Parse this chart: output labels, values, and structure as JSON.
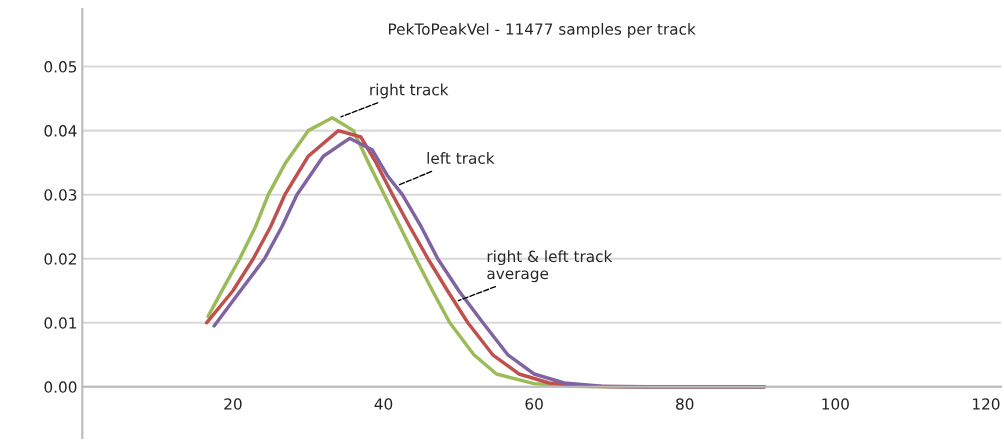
{
  "chart_data": {
    "type": "line",
    "title": "PekToPeakVel - 11477 samples per track",
    "xlim": [
      0,
      122
    ],
    "ylim": [
      -0.008,
      0.059
    ],
    "xticks": [
      20,
      40,
      60,
      80,
      100,
      120
    ],
    "yticks": [
      {
        "value": 0,
        "label": "0.00"
      },
      {
        "value": 0.01,
        "label": "0.01"
      },
      {
        "value": 0.02,
        "label": "0.02"
      },
      {
        "value": 0.03,
        "label": "0.03"
      },
      {
        "value": 0.04,
        "label": "0.04"
      },
      {
        "value": 0.05,
        "label": "0.05"
      }
    ],
    "grid": "y",
    "legend": false,
    "marker": "none",
    "line_style": "solid",
    "series": [
      {
        "color": "#9bbb59",
        "x": [
          16.7,
          19,
          20.9,
          23,
          24.7,
          27,
          30,
          33.2,
          36,
          38,
          40.1,
          42.2,
          44.3,
          46.5,
          48.8,
          52,
          55,
          60,
          65,
          70,
          80,
          90.6
        ],
        "values": [
          0.011,
          0.016,
          0.02,
          0.025,
          0.03,
          0.035,
          0.04,
          0.042,
          0.04,
          0.035,
          0.03,
          0.025,
          0.02,
          0.015,
          0.01,
          0.005,
          0.002,
          0.0005,
          0.0001,
          0,
          0,
          0
        ]
      },
      {
        "color": "#c0504d",
        "x": [
          16.5,
          20,
          22.7,
          25,
          26.9,
          30,
          34,
          37,
          39,
          41.2,
          43.5,
          45.9,
          48.5,
          51.2,
          54.5,
          58,
          62,
          67,
          72,
          80,
          90.6
        ],
        "values": [
          0.01,
          0.015,
          0.02,
          0.025,
          0.03,
          0.036,
          0.04,
          0.039,
          0.035,
          0.03,
          0.025,
          0.02,
          0.015,
          0.01,
          0.005,
          0.002,
          0.0006,
          0.0001,
          0,
          0,
          0
        ]
      },
      {
        "color": "#8064a2",
        "x": [
          17.5,
          21,
          24.2,
          26.5,
          28.5,
          32,
          35.5,
          38.5,
          40.5,
          42.5,
          45,
          47.2,
          50,
          53.2,
          56.5,
          60,
          64,
          69,
          75,
          90.6
        ],
        "values": [
          0.0095,
          0.015,
          0.02,
          0.025,
          0.03,
          0.036,
          0.0388,
          0.037,
          0.033,
          0.03,
          0.025,
          0.02,
          0.015,
          0.01,
          0.005,
          0.002,
          0.0006,
          0.0001,
          0,
          0
        ]
      }
    ],
    "annotations": [
      {
        "text": "right track",
        "x": 34,
        "y": 0.042
      },
      {
        "text": "left track",
        "x": 41.6,
        "y": 0.0313
      },
      {
        "text": "right & left track\naverage",
        "x": 49.6,
        "y": 0.0133
      }
    ]
  }
}
